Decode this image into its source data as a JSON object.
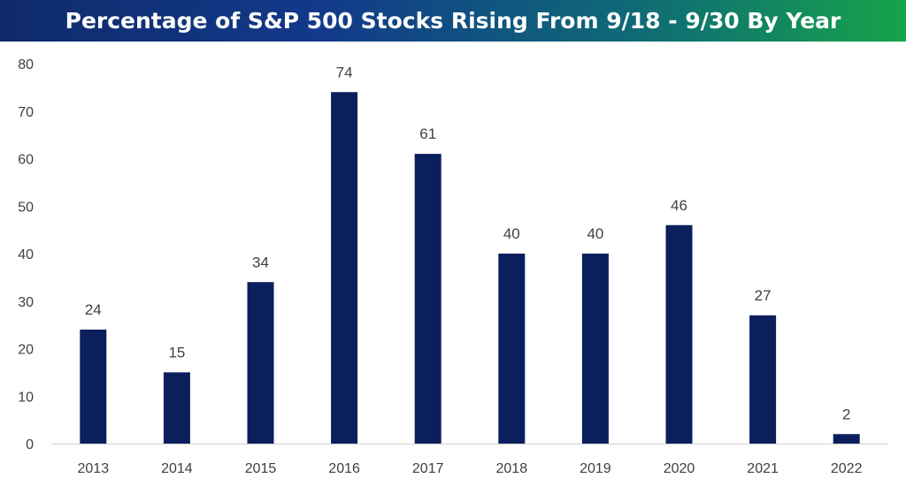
{
  "chart_data": {
    "type": "bar",
    "title": "Percentage of S&P 500 Stocks Rising From 9/18 - 9/30 By Year",
    "categories": [
      "2013",
      "2014",
      "2015",
      "2016",
      "2017",
      "2018",
      "2019",
      "2020",
      "2021",
      "2022"
    ],
    "values": [
      24,
      15,
      34,
      74,
      61,
      40,
      40,
      46,
      27,
      2
    ],
    "data_labels": [
      "24",
      "15",
      "34",
      "74",
      "61",
      "40",
      "40",
      "46",
      "27",
      "2"
    ],
    "xlabel": "",
    "ylabel": "",
    "ylim": [
      0,
      80
    ],
    "yticks": [
      "0",
      "10",
      "20",
      "30",
      "40",
      "50",
      "60",
      "70",
      "80"
    ],
    "grid": false,
    "legend": "none",
    "colors": {
      "bar": "#0a1f5c",
      "title_gradient_start": "#0f2a6b",
      "title_gradient_end": "#16a34a",
      "title_text": "#ffffff",
      "axis_text": "#404040"
    }
  }
}
